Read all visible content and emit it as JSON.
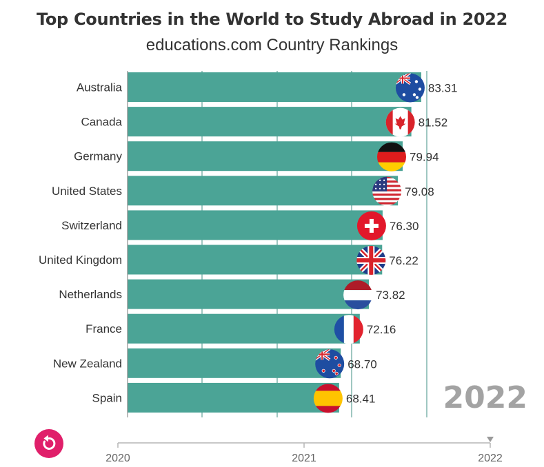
{
  "title": "Top Countries in the World to Study Abroad in 2022",
  "subtitle": "educations.com Country Rankings",
  "year_label": "2022",
  "replay_icon": "replay-icon",
  "timeline": {
    "ticks": [
      "2020",
      "2021",
      "2022"
    ],
    "current": "2022"
  },
  "colors": {
    "bar": "#4ba496",
    "grid": "#3f8f83",
    "text": "#333333",
    "year": "#a3a3a3",
    "replay": "#e01f6a"
  },
  "chart_data": {
    "type": "bar",
    "orientation": "horizontal",
    "categories": [
      "Australia",
      "Canada",
      "Germany",
      "United States",
      "Switzerland",
      "United Kingdom",
      "Netherlands",
      "France",
      "New Zealand",
      "Spain"
    ],
    "values": [
      83.31,
      81.52,
      79.94,
      79.08,
      76.3,
      76.22,
      73.82,
      72.16,
      68.7,
      68.41
    ],
    "value_labels": [
      "83.31",
      "81.52",
      "79.94",
      "79.08",
      "76.30",
      "76.22",
      "73.82",
      "72.16",
      "68.70",
      "68.41"
    ],
    "flags": [
      "australia-flag-icon",
      "canada-flag-icon",
      "germany-flag-icon",
      "united-states-flag-icon",
      "switzerland-flag-icon",
      "united-kingdom-flag-icon",
      "netherlands-flag-icon",
      "france-flag-icon",
      "new-zealand-flag-icon",
      "spain-flag-icon"
    ],
    "grid": true
  }
}
